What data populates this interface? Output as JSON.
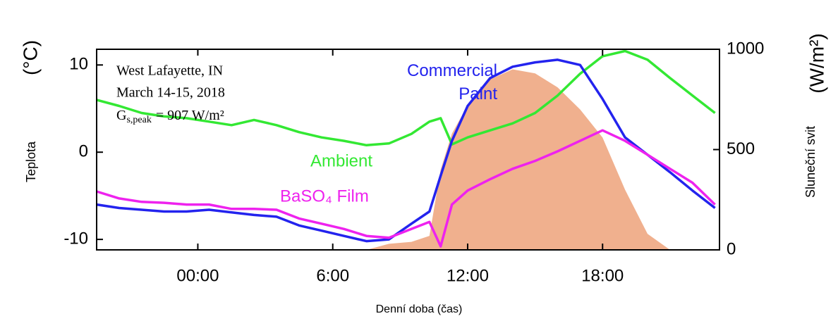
{
  "chart_data": {
    "type": "line",
    "x_label": "Denní doba (čas)",
    "y_label": "Teplota",
    "y_unit": "(°C)",
    "y2_label": "Sluneční svit",
    "y2_unit": "(W/m²)",
    "annotations": [
      "West Lafayette, IN",
      "March 14-15, 2018"
    ],
    "peak_label": {
      "symbol": "G",
      "subscript": "s,peak",
      "text": "= 907 W/m²"
    },
    "x": [
      -4.5,
      -3.5,
      -2.5,
      -1.5,
      -0.5,
      0.5,
      1.5,
      2.5,
      3.5,
      4.5,
      5.5,
      6.5,
      7.5,
      8.5,
      9.5,
      10.3,
      10.8,
      11.3,
      12,
      13,
      14,
      15,
      16,
      17,
      18,
      19,
      20,
      21,
      22,
      23
    ],
    "xlim": [
      -4.5,
      23.2
    ],
    "xticks": [
      {
        "value": 0,
        "label": "00:00"
      },
      {
        "value": 6,
        "label": "6:00"
      },
      {
        "value": 12,
        "label": "12:00"
      },
      {
        "value": 18,
        "label": "18:00"
      }
    ],
    "ylim": [
      -11.2,
      11.8
    ],
    "yticks": [
      -10,
      0,
      10
    ],
    "y2lim": [
      0,
      1000
    ],
    "y2ticks": [
      0,
      500,
      1000
    ],
    "series": [
      {
        "color": "#f0b08e",
        "axis": "y2",
        "fill": true,
        "values": [
          0,
          0,
          0,
          0,
          0,
          0,
          0,
          0,
          0,
          0,
          0,
          0,
          0,
          30,
          40,
          70,
          400,
          580,
          720,
          850,
          900,
          880,
          810,
          700,
          560,
          300,
          80,
          0,
          0,
          0
        ]
      },
      {
        "name": "Ambient",
        "color": "#33e833",
        "values": [
          6.0,
          5.3,
          4.5,
          4.1,
          3.9,
          3.5,
          3.1,
          3.7,
          3.1,
          2.3,
          1.7,
          1.3,
          0.8,
          1.0,
          2.1,
          3.5,
          3.9,
          0.9,
          1.7,
          2.5,
          3.3,
          4.5,
          6.5,
          9.0,
          11.0,
          11.6,
          10.6,
          8.5,
          6.5,
          4.5
        ]
      },
      {
        "name": "Commercial Paint",
        "color": "#2323ee",
        "values": [
          -6.0,
          -6.4,
          -6.6,
          -6.8,
          -6.8,
          -6.6,
          -6.9,
          -7.2,
          -7.4,
          -8.4,
          -9.0,
          -9.6,
          -10.2,
          -10.0,
          -8.2,
          -6.8,
          -2.7,
          1.3,
          5.3,
          8.5,
          9.8,
          10.3,
          10.6,
          10.0,
          6.1,
          1.7,
          -0.3,
          -2.3,
          -4.4,
          -6.4
        ]
      },
      {
        "name": "BaSO₄ Film",
        "color": "#ee22ee",
        "values": [
          -4.5,
          -5.3,
          -5.7,
          -5.8,
          -6.0,
          -6.0,
          -6.5,
          -6.5,
          -6.6,
          -7.6,
          -8.2,
          -8.8,
          -9.6,
          -9.8,
          -8.8,
          -8.0,
          -10.8,
          -6.0,
          -4.4,
          -3.1,
          -1.9,
          -1.0,
          0.1,
          1.3,
          2.5,
          1.3,
          -0.3,
          -1.9,
          -3.5,
          -6.0
        ]
      }
    ]
  }
}
